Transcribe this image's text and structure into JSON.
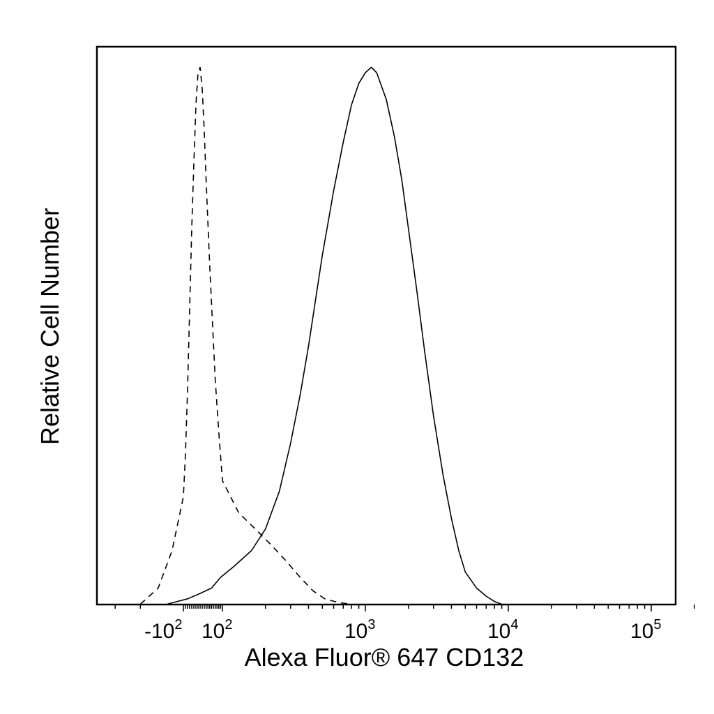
{
  "chart_data": {
    "type": "line",
    "title": "",
    "xlabel": "Alexa Fluor® 647 CD132",
    "ylabel": "Relative Cell Number",
    "x_scale": "biexponential",
    "xlim": [
      -300,
      220000
    ],
    "ylim": [
      0,
      1
    ],
    "grid": false,
    "legend": "none",
    "x_ticks": [
      {
        "value": -100,
        "base": "-10",
        "exp": "2"
      },
      {
        "value": 100,
        "base": "10",
        "exp": "2"
      },
      {
        "value": 1000,
        "base": "10",
        "exp": "3"
      },
      {
        "value": 10000,
        "base": "10",
        "exp": "4"
      },
      {
        "value": 100000,
        "base": "10",
        "exp": "5"
      }
    ],
    "series": [
      {
        "style": "dashed",
        "x": [
          -200,
          -150,
          -120,
          -100,
          -90,
          -80,
          -70,
          -60,
          -50,
          -40,
          -30,
          -20,
          -10,
          0,
          10,
          20,
          30,
          40,
          50,
          60,
          80,
          100,
          130,
          170,
          220,
          280,
          350,
          430,
          520,
          650,
          800
        ],
        "y": [
          0.0,
          0.03,
          0.1,
          0.2,
          0.28,
          0.4,
          0.55,
          0.7,
          0.82,
          0.93,
          0.99,
          1.0,
          0.96,
          0.88,
          0.79,
          0.71,
          0.63,
          0.56,
          0.49,
          0.42,
          0.32,
          0.23,
          0.17,
          0.14,
          0.11,
          0.08,
          0.05,
          0.025,
          0.01,
          0.003,
          0.0
        ]
      },
      {
        "style": "solid",
        "x": [
          -130,
          -80,
          -20,
          40,
          90,
          120,
          160,
          200,
          250,
          300,
          350,
          400,
          450,
          500,
          600,
          700,
          800,
          900,
          1000,
          1100,
          1200,
          1400,
          1600,
          1800,
          2000,
          2300,
          2600,
          3000,
          3500,
          4000,
          4500,
          5000,
          6000,
          7000,
          8000,
          9000
        ],
        "y": [
          0.0,
          0.01,
          0.02,
          0.03,
          0.05,
          0.07,
          0.1,
          0.14,
          0.21,
          0.3,
          0.39,
          0.48,
          0.57,
          0.65,
          0.77,
          0.86,
          0.93,
          0.97,
          0.99,
          1.0,
          0.99,
          0.94,
          0.87,
          0.79,
          0.7,
          0.58,
          0.47,
          0.35,
          0.24,
          0.16,
          0.1,
          0.06,
          0.03,
          0.015,
          0.005,
          0.0
        ]
      }
    ]
  }
}
